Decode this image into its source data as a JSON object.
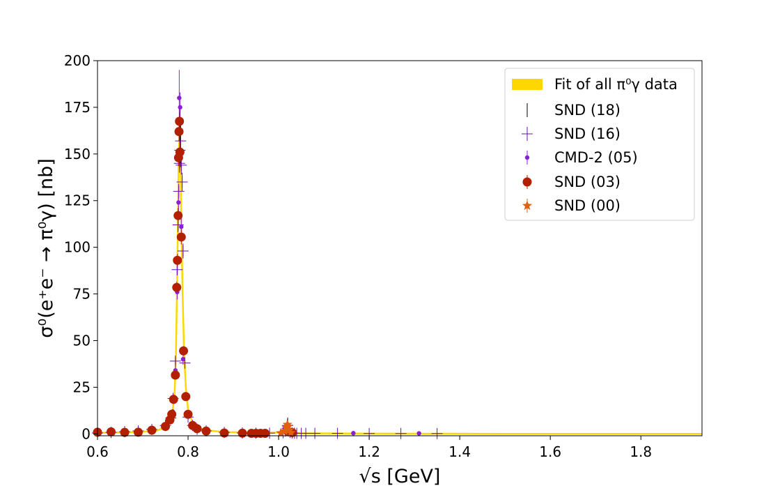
{
  "chart_data": {
    "type": "scatter",
    "xlabel": "√s [GeV]",
    "ylabel": "σ⁰(e⁺e⁻ → π⁰γ) [nb]",
    "xlim": [
      0.6,
      1.935
    ],
    "ylim": [
      -1,
      200
    ],
    "x_ticks": [
      0.6,
      0.8,
      1.0,
      1.2,
      1.4,
      1.6,
      1.8
    ],
    "x_tick_labels": [
      "0.6",
      "0.8",
      "1.0",
      "1.2",
      "1.4",
      "1.6",
      "1.8"
    ],
    "y_ticks": [
      0,
      25,
      50,
      75,
      100,
      125,
      150,
      175,
      200
    ],
    "y_tick_labels": [
      "0",
      "25",
      "50",
      "75",
      "100",
      "125",
      "150",
      "175",
      "200"
    ],
    "grid": false,
    "legend_position": "top-right",
    "legend": [
      "Fit of all π⁰γ data",
      "SND (18)",
      "SND (16)",
      "CMD-2 (05)",
      "SND (03)",
      "SND (00)"
    ],
    "series": [
      {
        "name": "Fit of all π⁰γ data",
        "kind": "band",
        "color": "#ffd700",
        "x": [
          0.6,
          0.65,
          0.7,
          0.73,
          0.75,
          0.76,
          0.765,
          0.77,
          0.773,
          0.776,
          0.779,
          0.781,
          0.783,
          0.785,
          0.788,
          0.791,
          0.795,
          0.8,
          0.81,
          0.82,
          0.84,
          0.88,
          0.95,
          1.0,
          1.012,
          1.017,
          1.019,
          1.021,
          1.025,
          1.035,
          1.06,
          1.2,
          1.5,
          1.935
        ],
        "values": [
          0.6,
          0.8,
          1.1,
          1.7,
          3.6,
          7,
          11,
          20,
          40,
          82,
          142,
          160,
          148,
          115,
          75,
          45,
          25,
          13,
          6,
          3.5,
          2,
          1,
          0.6,
          0.8,
          1.5,
          3.5,
          5.3,
          3.5,
          1.2,
          0.4,
          0.3,
          0.15,
          0.05,
          0.03
        ]
      },
      {
        "name": "SND (18)",
        "marker": "vline",
        "color": "#000000",
        "x": [
          0.782,
          0.7835,
          1.019,
          1.02
        ],
        "values": [
          160,
          155,
          4,
          5
        ],
        "errors": [
          15,
          12,
          1.5,
          1.5
        ]
      },
      {
        "name": "SND (16)",
        "marker": "plus",
        "color": "#6a0dad",
        "x": [
          0.6,
          0.63,
          0.66,
          0.69,
          0.72,
          0.75,
          0.762,
          0.767,
          0.772,
          0.776,
          0.778,
          0.7795,
          0.781,
          0.782,
          0.7835,
          0.785,
          0.787,
          0.789,
          0.793,
          0.8,
          0.81,
          0.82,
          0.84,
          0.88,
          0.92,
          0.95,
          0.98,
          1.01,
          1.015,
          1.019,
          1.02,
          1.021,
          1.025,
          1.03,
          1.035,
          1.04,
          1.05,
          1.06,
          1.08,
          1.13,
          1.2,
          1.27,
          1.35
        ],
        "values": [
          0.5,
          0.8,
          1.2,
          1.6,
          2.4,
          4.5,
          8.5,
          19,
          39,
          88,
          112,
          130,
          145,
          152,
          157,
          144,
          135,
          98,
          38,
          9,
          4.5,
          2.5,
          1.6,
          0.8,
          0.5,
          0.4,
          0.4,
          0.6,
          1.5,
          3,
          4.5,
          2.5,
          0.8,
          0.5,
          0.4,
          0.3,
          0.3,
          0.3,
          0.3,
          0.3,
          0.2,
          0.2,
          0.2
        ],
        "errors": [
          0.3,
          0.3,
          0.3,
          0.4,
          0.4,
          0.5,
          0.8,
          1.2,
          2,
          3,
          4,
          4,
          5,
          5,
          5,
          5,
          5,
          4,
          2,
          0.8,
          0.5,
          0.4,
          0.3,
          0.3,
          0.2,
          0.2,
          0.2,
          0.2,
          0.4,
          0.6,
          0.8,
          0.5,
          0.3,
          0.2,
          0.2,
          0.2,
          0.2,
          0.2,
          0.2,
          0.2,
          0.1,
          0.1,
          0.1
        ]
      },
      {
        "name": "CMD-2 (05)",
        "marker": "dot",
        "color": "#8b1ed6",
        "x": [
          0.766,
          0.772,
          0.776,
          0.779,
          0.7805,
          0.7825,
          0.785,
          0.789,
          1.165,
          1.31
        ],
        "values": [
          12,
          34,
          76,
          124,
          180,
          175,
          111,
          40,
          0.4,
          0.3
        ],
        "errors": [
          1,
          2,
          4,
          6,
          15,
          8,
          5,
          3,
          0.2,
          0.2
        ]
      },
      {
        "name": "SND (03)",
        "marker": "circle",
        "color": "#b22000",
        "x": [
          0.6,
          0.63,
          0.66,
          0.69,
          0.72,
          0.75,
          0.76,
          0.764,
          0.768,
          0.772,
          0.775,
          0.7765,
          0.778,
          0.779,
          0.78,
          0.781,
          0.782,
          0.785,
          0.79,
          0.795,
          0.8,
          0.81,
          0.82,
          0.84,
          0.88,
          0.92,
          0.94,
          0.95,
          0.96,
          0.97,
          1.02,
          1.03
        ],
        "values": [
          0.9,
          1.1,
          0.8,
          0.9,
          2,
          4,
          7.5,
          10.5,
          18.5,
          31.5,
          78.5,
          93,
          117,
          148,
          162,
          167.5,
          151,
          105.5,
          44.5,
          20,
          10.5,
          4.5,
          2.8,
          1.5,
          0.5,
          0.4,
          0.3,
          0.3,
          0.3,
          0.3,
          1.5,
          0.7
        ],
        "errors": [
          0.3,
          0.3,
          0.3,
          0.3,
          0.4,
          0.5,
          0.7,
          0.9,
          1.2,
          1.8,
          3,
          3.5,
          4,
          4.5,
          5,
          5,
          5,
          4,
          2.5,
          1.5,
          0.8,
          0.5,
          0.4,
          0.3,
          0.2,
          0.2,
          0.2,
          0.2,
          0.2,
          0.2,
          0.5,
          0.3
        ]
      },
      {
        "name": "SND (00)",
        "marker": "star",
        "color": "#e06010",
        "x": [
          1.005,
          1.013,
          1.017,
          1.0195,
          1.021,
          1.023,
          1.027
        ],
        "values": [
          0.5,
          1.5,
          3.5,
          5,
          4,
          2,
          0.6
        ],
        "errors": [
          0.3,
          0.5,
          0.8,
          1.2,
          1,
          0.6,
          0.3
        ]
      }
    ]
  }
}
